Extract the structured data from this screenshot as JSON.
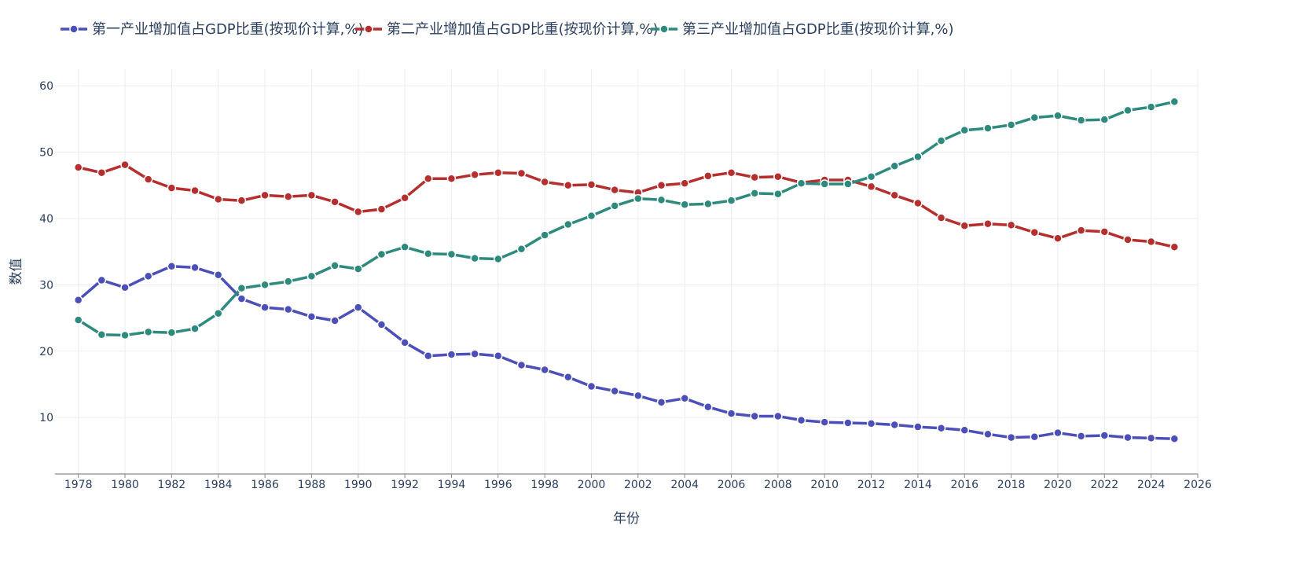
{
  "chart_data": {
    "type": "line",
    "title": "",
    "xlabel": "年份",
    "ylabel": "数值",
    "xlim": [
      1977,
      2026
    ],
    "ylim": [
      1.5,
      62.5
    ],
    "x_ticks": [
      1978,
      1980,
      1982,
      1984,
      1986,
      1988,
      1990,
      1992,
      1994,
      1996,
      1998,
      2000,
      2002,
      2004,
      2006,
      2008,
      2010,
      2012,
      2014,
      2016,
      2018,
      2020,
      2022,
      2024,
      2026
    ],
    "y_ticks": [
      10,
      20,
      30,
      40,
      50,
      60
    ],
    "grid": true,
    "legend_position": "top-left",
    "x": [
      1978,
      1979,
      1980,
      1981,
      1982,
      1983,
      1984,
      1985,
      1986,
      1987,
      1988,
      1989,
      1990,
      1991,
      1992,
      1993,
      1994,
      1995,
      1996,
      1997,
      1998,
      1999,
      2000,
      2001,
      2002,
      2003,
      2004,
      2005,
      2006,
      2007,
      2008,
      2009,
      2010,
      2011,
      2012,
      2013,
      2014,
      2015,
      2016,
      2017,
      2018,
      2019,
      2020,
      2021,
      2022,
      2023,
      2024,
      2025
    ],
    "series": [
      {
        "name": "第一产业增加值占GDP比重(按现价计算,%)",
        "color": "#4c4fb8",
        "values": [
          27.7,
          30.7,
          29.6,
          31.3,
          32.8,
          32.6,
          31.5,
          27.9,
          26.6,
          26.3,
          25.2,
          24.6,
          26.6,
          24.0,
          21.3,
          19.3,
          19.5,
          19.6,
          19.3,
          17.9,
          17.2,
          16.1,
          14.7,
          14.0,
          13.3,
          12.3,
          12.9,
          11.6,
          10.6,
          10.2,
          10.2,
          9.6,
          9.3,
          9.2,
          9.1,
          8.9,
          8.6,
          8.4,
          8.1,
          7.5,
          7.0,
          7.1,
          7.7,
          7.2,
          7.3,
          7.0,
          6.9,
          6.8
        ]
      },
      {
        "name": "第二产业增加值占GDP比重(按现价计算,%)",
        "color": "#b52f2f",
        "values": [
          47.7,
          46.9,
          48.1,
          45.9,
          44.6,
          44.2,
          42.9,
          42.7,
          43.5,
          43.3,
          43.5,
          42.5,
          41.0,
          41.4,
          43.1,
          46.0,
          46.0,
          46.6,
          46.9,
          46.8,
          45.5,
          45.0,
          45.1,
          44.3,
          43.9,
          45.0,
          45.3,
          46.4,
          46.9,
          46.2,
          46.3,
          45.4,
          45.8,
          45.8,
          44.8,
          43.5,
          42.3,
          40.1,
          38.9,
          39.2,
          39.0,
          37.9,
          37.0,
          38.2,
          38.0,
          36.8,
          36.5,
          35.7
        ]
      },
      {
        "name": "第三产业增加值占GDP比重(按现价计算,%)",
        "color": "#2f8a7e",
        "values": [
          24.7,
          22.5,
          22.4,
          22.9,
          22.8,
          23.4,
          25.7,
          29.5,
          30.0,
          30.5,
          31.3,
          32.9,
          32.4,
          34.6,
          35.7,
          34.7,
          34.6,
          34.0,
          33.9,
          35.4,
          37.5,
          39.1,
          40.4,
          41.9,
          43.0,
          42.8,
          42.1,
          42.2,
          42.7,
          43.8,
          43.7,
          45.3,
          45.2,
          45.2,
          46.3,
          47.9,
          49.3,
          51.7,
          53.3,
          53.6,
          54.1,
          55.2,
          55.5,
          54.8,
          54.9,
          56.3,
          56.8,
          57.6
        ]
      }
    ]
  }
}
